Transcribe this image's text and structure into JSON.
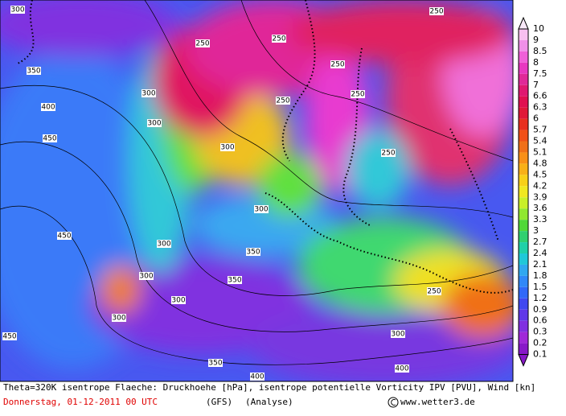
{
  "map": {
    "colorbar": {
      "values": [
        10,
        9,
        8.5,
        8,
        7.5,
        7,
        6.6,
        6.3,
        6,
        5.7,
        5.4,
        5.1,
        4.8,
        4.5,
        4.2,
        3.9,
        3.6,
        3.3,
        3,
        2.7,
        2.4,
        2.1,
        1.8,
        1.5,
        1.2,
        0.9,
        0.6,
        0.3,
        0.2,
        0.1
      ],
      "colors": [
        "#f8e8f8",
        "#f8c0f0",
        "#f090e8",
        "#f060d8",
        "#e838c0",
        "#e02898",
        "#e01870",
        "#e01050",
        "#e01838",
        "#e83020",
        "#f05018",
        "#f07018",
        "#f89018",
        "#f8b018",
        "#f8d018",
        "#f0e820",
        "#c8f028",
        "#90e830",
        "#50d838",
        "#30d070",
        "#20d0a8",
        "#20c8d8",
        "#30a8f0",
        "#3088f8",
        "#3068f8",
        "#4048f0",
        "#6038e8",
        "#8030e0",
        "#a028d8",
        "#8818c8"
      ]
    },
    "contour_labels": [
      300,
      350,
      400,
      450,
      450,
      450,
      250,
      250,
      250,
      250,
      300,
      300,
      250,
      250,
      250,
      300,
      300,
      350,
      300,
      300,
      350,
      400,
      400,
      300,
      250,
      300,
      350,
      300
    ],
    "footer": {
      "description": "Theta=320K isentrope Flaeche: Druckhoehe [hPa], isentrope potentielle Vorticity IPV [PVU], Wind [kn]",
      "date": "Donnerstag, 01-12-2011  00 UTC",
      "model": "(GFS)",
      "run": "(Analyse)",
      "copyright": "www.wetter3.de"
    }
  }
}
